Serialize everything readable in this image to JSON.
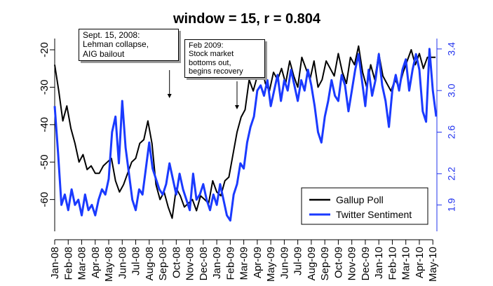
{
  "chart_data": {
    "type": "line",
    "title": "window = 15, r = 0.804",
    "xlabel": "",
    "ylabel": "",
    "y_left_ticks": [
      -60,
      -50,
      -40,
      -30,
      -20
    ],
    "y_left_tick_labels": [
      "-60",
      "-50",
      "-40",
      "-30",
      "-20"
    ],
    "y_right_ticks": [
      1.9,
      2.2,
      2.6,
      3.0,
      3.4
    ],
    "y_right_tick_labels": [
      "1.9",
      "2.2",
      "2.6",
      "3.0",
      "3.4"
    ],
    "ylim_left": [
      -67,
      -17
    ],
    "ylim_right": [
      1.7,
      3.5
    ],
    "x_tick_labels": [
      "Jan-08",
      "Feb-08",
      "Mar-08",
      "Apr-08",
      "May-08",
      "Jun-08",
      "Jul-08",
      "Aug-08",
      "Sep-08",
      "Oct-08",
      "Nov-08",
      "Dec-08",
      "Jan-09",
      "Feb-09",
      "Mar-09",
      "Apr-09",
      "May-09",
      "Jun-09",
      "Jul-09",
      "Aug-09",
      "Sep-09",
      "Oct-09",
      "Nov-09",
      "Dec-09",
      "Jan-10",
      "Feb-10",
      "Mar-10",
      "Apr-10",
      "May-10"
    ],
    "legend_position": "bottom-right",
    "series": [
      {
        "name": "Gallup Poll",
        "color": "#000000",
        "axis": "left",
        "x": [
          0,
          0.3,
          0.6,
          0.9,
          1.2,
          1.5,
          1.8,
          2.1,
          2.4,
          2.7,
          3,
          3.3,
          3.6,
          3.9,
          4.2,
          4.5,
          4.8,
          5.1,
          5.4,
          5.7,
          6,
          6.3,
          6.6,
          6.9,
          7.2,
          7.5,
          7.8,
          8.1,
          8.4,
          8.7,
          9,
          9.3,
          9.6,
          9.9,
          10.2,
          10.5,
          10.8,
          11.1,
          11.4,
          11.7,
          12,
          12.3,
          12.6,
          12.9,
          13.2,
          13.5,
          13.8,
          14.1,
          14.4,
          14.7,
          15,
          15.3,
          15.6,
          15.9,
          16.2,
          16.5,
          16.8,
          17.1,
          17.4,
          17.7,
          18,
          18.3,
          18.6,
          18.9,
          19.2,
          19.5,
          19.8,
          20.1,
          20.4,
          20.7,
          21,
          21.3,
          21.6,
          21.9,
          22.2,
          22.5,
          22.8,
          23.1,
          23.4,
          23.7,
          24,
          24.3,
          24.6,
          24.9,
          25.2,
          25.5,
          25.8,
          26.1,
          26.4,
          26.7,
          27,
          27.3,
          27.6,
          27.9,
          28.2
        ],
        "values": [
          -24,
          -31,
          -39,
          -35,
          -41,
          -45,
          -50,
          -48,
          -52,
          -51,
          -53,
          -53,
          -51,
          -50,
          -49,
          -55,
          -58,
          -56,
          -53,
          -50,
          -49,
          -45,
          -44,
          -39,
          -45,
          -56,
          -60,
          -58,
          -62,
          -65,
          -57,
          -59,
          -62,
          -61,
          -60,
          -63,
          -59,
          -60,
          -61,
          -55,
          -58,
          -59,
          -55,
          -54,
          -48,
          -42,
          -38,
          -36,
          -28,
          -31,
          -27,
          -24,
          -29,
          -31,
          -26,
          -28,
          -25,
          -29,
          -23,
          -27,
          -30,
          -22,
          -25,
          -28,
          -23,
          -30,
          -28,
          -23,
          -25,
          -27,
          -21,
          -26,
          -29,
          -22,
          -24,
          -19,
          -26,
          -30,
          -24,
          -28,
          -21,
          -27,
          -29,
          -31,
          -28,
          -30,
          -26,
          -23,
          -20,
          -24,
          -21,
          -25,
          -22,
          -22,
          -22
        ]
      },
      {
        "name": "Twitter Sentiment",
        "color": "#1a3aff",
        "axis": "right",
        "x": [
          0,
          0.25,
          0.5,
          0.75,
          1,
          1.25,
          1.5,
          1.75,
          2,
          2.25,
          2.5,
          2.75,
          3,
          3.25,
          3.5,
          3.75,
          4,
          4.25,
          4.5,
          4.75,
          5,
          5.25,
          5.5,
          5.75,
          6,
          6.25,
          6.5,
          6.75,
          7,
          7.25,
          7.5,
          7.75,
          8,
          8.25,
          8.5,
          8.75,
          9,
          9.25,
          9.5,
          9.75,
          10,
          10.25,
          10.5,
          10.75,
          11,
          11.25,
          11.5,
          11.75,
          12,
          12.25,
          12.5,
          12.75,
          13,
          13.25,
          13.5,
          13.75,
          14,
          14.25,
          14.5,
          14.75,
          15,
          15.25,
          15.5,
          15.75,
          16,
          16.25,
          16.5,
          16.75,
          17,
          17.25,
          17.5,
          17.75,
          18,
          18.25,
          18.5,
          18.75,
          19,
          19.25,
          19.5,
          19.75,
          20,
          20.25,
          20.5,
          20.75,
          21,
          21.25,
          21.5,
          21.75,
          22,
          22.25,
          22.5,
          22.75,
          23,
          23.25,
          23.5,
          23.75,
          24,
          24.25,
          24.5,
          24.75,
          25,
          25.25,
          25.5,
          25.75,
          26,
          26.25,
          26.5,
          26.75,
          27,
          27.25,
          27.5,
          27.75,
          28,
          28.25
        ],
        "values": [
          2.85,
          2.4,
          1.9,
          2.0,
          1.85,
          2.05,
          1.9,
          1.95,
          1.8,
          2.0,
          1.85,
          1.9,
          1.8,
          1.95,
          2.05,
          2.0,
          2.15,
          2.6,
          2.75,
          2.3,
          2.9,
          2.45,
          2.2,
          1.95,
          1.85,
          2.05,
          2.0,
          2.25,
          2.5,
          2.25,
          2.15,
          2.05,
          2.0,
          2.1,
          2.3,
          2.15,
          2.0,
          2.2,
          2.05,
          1.95,
          1.85,
          2.2,
          1.95,
          2.0,
          2.1,
          1.95,
          1.85,
          2.0,
          1.9,
          2.1,
          1.95,
          1.8,
          1.75,
          2.0,
          2.1,
          2.3,
          2.25,
          2.5,
          2.65,
          2.75,
          3.0,
          3.05,
          2.95,
          3.1,
          2.85,
          3.0,
          3.15,
          2.9,
          3.1,
          3.0,
          3.2,
          3.05,
          2.9,
          3.1,
          3.0,
          3.2,
          3.05,
          2.85,
          2.6,
          2.5,
          2.75,
          2.9,
          3.1,
          2.95,
          2.9,
          3.15,
          3.05,
          2.8,
          3.0,
          3.2,
          3.35,
          3.1,
          2.85,
          3.2,
          2.95,
          3.1,
          3.35,
          3.05,
          2.9,
          2.65,
          3.0,
          3.15,
          3.0,
          3.2,
          3.3,
          3.0,
          3.2,
          3.35,
          3.2,
          2.8,
          2.7,
          3.4,
          3.0,
          2.75
        ]
      }
    ],
    "annotations": [
      {
        "text": "Sept. 15, 2008:\nLehman collapse,\nAIG bailout",
        "x": 8.5
      },
      {
        "text": "Feb 2009:\nStock market\nbottoms out,\nbegins recovery",
        "x": 13.5
      }
    ]
  }
}
